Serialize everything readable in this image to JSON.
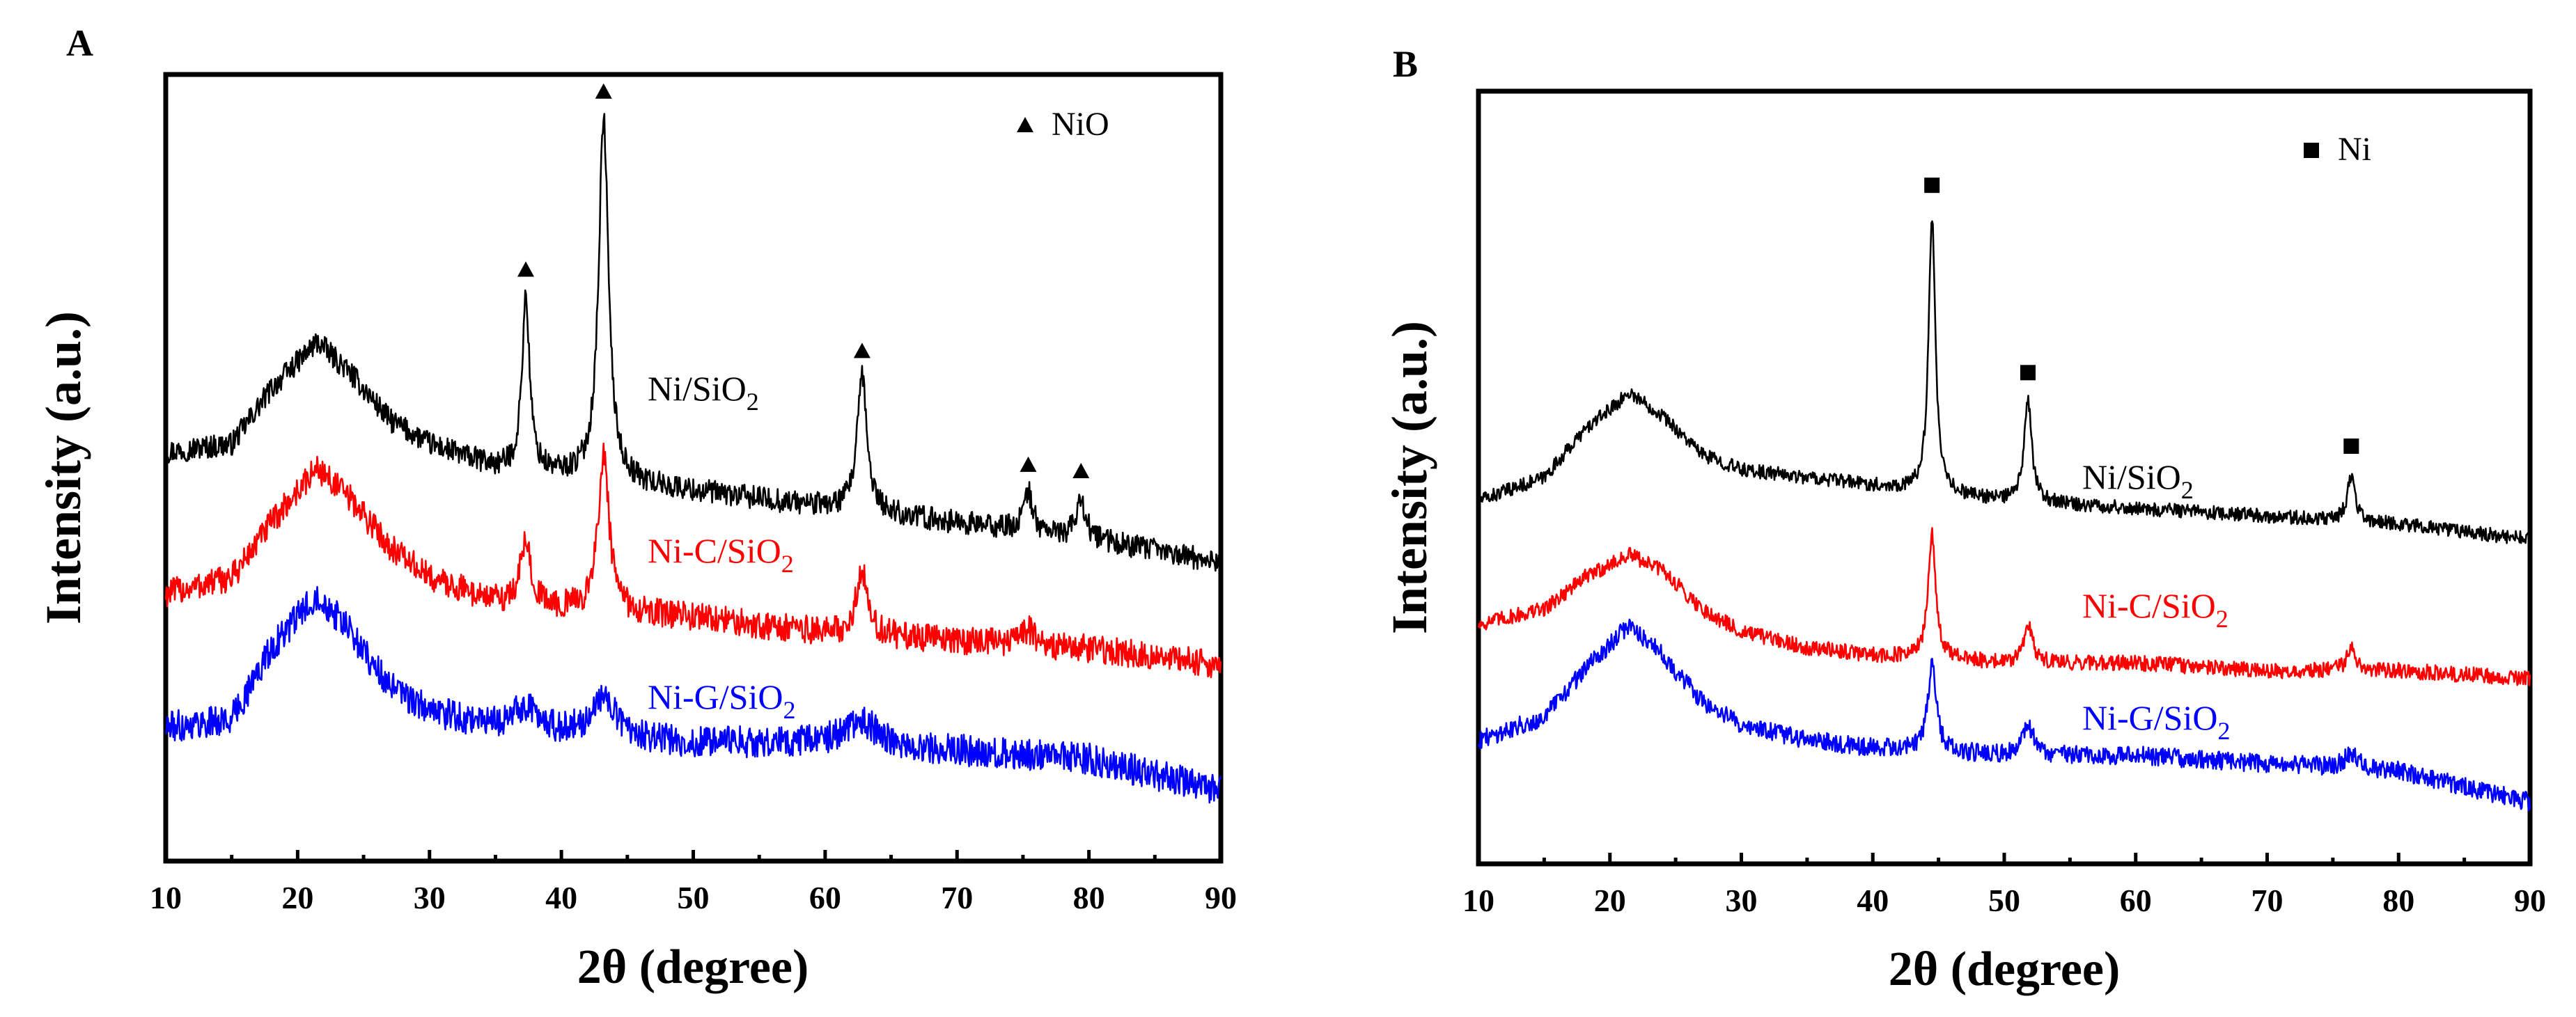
{
  "chart_data": [
    {
      "panel_label": "A",
      "type": "line",
      "xlabel": "2θ (degree)",
      "ylabel": "Intensity (a.u.)",
      "xlim": [
        10,
        90
      ],
      "ylim": [
        0,
        100
      ],
      "x_ticks": [
        10,
        20,
        30,
        40,
        50,
        60,
        70,
        80,
        90
      ],
      "x_tick_labels": [
        "10",
        "20",
        "30",
        "40",
        "50",
        "60",
        "70",
        "80",
        "90"
      ],
      "legend": {
        "marker": "triangle",
        "label": "NiO",
        "placement": "top-right"
      },
      "peak_markers": [
        37.3,
        43.2,
        62.8,
        75.4,
        79.4
      ],
      "series": [
        {
          "name": "Ni/SiO2",
          "label_main": "Ni/SiO",
          "label_sub": "2",
          "color": "#000000",
          "baseline": [
            [
              10,
              52
            ],
            [
              15,
              53
            ],
            [
              18,
              60
            ],
            [
              21.5,
              66
            ],
            [
              24,
              62
            ],
            [
              27,
              56
            ],
            [
              30,
              53
            ],
            [
              35,
              50
            ],
            [
              40,
              49
            ],
            [
              50,
              47
            ],
            [
              60,
              45
            ],
            [
              70,
              43
            ],
            [
              80,
              41
            ],
            [
              90,
              38
            ]
          ],
          "peaks": [
            [
              37.3,
              0.35,
              22
            ],
            [
              43.2,
              0.45,
              46
            ],
            [
              62.8,
              0.45,
              17
            ],
            [
              75.4,
              0.4,
              5
            ],
            [
              79.4,
              0.4,
              5
            ]
          ],
          "noise": 1.5
        },
        {
          "name": "Ni-C/SiO2",
          "label_main": "Ni-C/SiO",
          "label_sub": "2",
          "color": "#ff0000",
          "baseline": [
            [
              10,
              34
            ],
            [
              15,
              36
            ],
            [
              18,
              43
            ],
            [
              21.5,
              50
            ],
            [
              24,
              46
            ],
            [
              27,
              40
            ],
            [
              30,
              36
            ],
            [
              35,
              33
            ],
            [
              40,
              32
            ],
            [
              50,
              31
            ],
            [
              60,
              29
            ],
            [
              70,
              28
            ],
            [
              80,
              27
            ],
            [
              90,
              25
            ]
          ],
          "peaks": [
            [
              37.3,
              0.5,
              8
            ],
            [
              43.2,
              0.5,
              20
            ],
            [
              62.8,
              0.55,
              8
            ],
            [
              75.4,
              0.5,
              2
            ]
          ],
          "noise": 1.8
        },
        {
          "name": "Ni-G/SiO2",
          "label_main": "Ni-G/SiO",
          "label_sub": "2",
          "color": "#0000ff",
          "baseline": [
            [
              10,
              17
            ],
            [
              15,
              18
            ],
            [
              18,
              27
            ],
            [
              21.5,
              34
            ],
            [
              24,
              29
            ],
            [
              27,
              22
            ],
            [
              30,
              19
            ],
            [
              35,
              17
            ],
            [
              40,
              16
            ],
            [
              50,
              15
            ],
            [
              60,
              15
            ],
            [
              70,
              14
            ],
            [
              80,
              13
            ],
            [
              90,
              9
            ]
          ],
          "peaks": [
            [
              37.3,
              1.2,
              3
            ],
            [
              43.2,
              1.2,
              5
            ],
            [
              62.8,
              1.5,
              3
            ]
          ],
          "noise": 2.0
        }
      ]
    },
    {
      "panel_label": "B",
      "type": "line",
      "xlabel": "2θ (degree)",
      "ylabel": "Intensity (a.u.)",
      "xlim": [
        10,
        90
      ],
      "ylim": [
        0,
        100
      ],
      "x_ticks": [
        10,
        20,
        30,
        40,
        50,
        60,
        70,
        80,
        90
      ],
      "x_tick_labels": [
        "10",
        "20",
        "30",
        "40",
        "50",
        "60",
        "70",
        "80",
        "90"
      ],
      "legend": {
        "marker": "square",
        "label": "Ni",
        "placement": "top-right"
      },
      "peak_markers": [
        44.5,
        51.8,
        76.4
      ],
      "series": [
        {
          "name": "Ni/SiO2",
          "label_main": "Ni/SiO",
          "label_sub": "2",
          "color": "#000000",
          "baseline": [
            [
              10,
              47
            ],
            [
              15,
              50
            ],
            [
              18,
              56
            ],
            [
              21.5,
              61
            ],
            [
              24,
              58
            ],
            [
              27,
              53
            ],
            [
              30,
              51
            ],
            [
              35,
              50
            ],
            [
              40,
              49
            ],
            [
              50,
              47
            ],
            [
              60,
              46
            ],
            [
              70,
              45
            ],
            [
              80,
              44
            ],
            [
              90,
              42
            ]
          ],
          "peaks": [
            [
              44.5,
              0.3,
              36
            ],
            [
              51.8,
              0.35,
              13
            ],
            [
              76.4,
              0.35,
              6
            ]
          ],
          "noise": 0.9
        },
        {
          "name": "Ni-C/SiO2",
          "label_main": "Ni-C/SiO",
          "label_sub": "2",
          "color": "#ff0000",
          "baseline": [
            [
              10,
              31
            ],
            [
              15,
              33
            ],
            [
              18,
              37
            ],
            [
              21.5,
              40
            ],
            [
              24,
              38
            ],
            [
              27,
              33
            ],
            [
              30,
              30
            ],
            [
              35,
              28
            ],
            [
              40,
              27
            ],
            [
              50,
              26
            ],
            [
              60,
              26
            ],
            [
              70,
              25
            ],
            [
              80,
              25
            ],
            [
              90,
              24
            ]
          ],
          "peaks": [
            [
              44.5,
              0.35,
              16
            ],
            [
              51.8,
              0.4,
              5
            ],
            [
              76.4,
              0.4,
              3
            ]
          ],
          "noise": 1.0
        },
        {
          "name": "Ni-G/SiO2",
          "label_main": "Ni-G/SiO",
          "label_sub": "2",
          "color": "#0000ff",
          "baseline": [
            [
              10,
              16
            ],
            [
              15,
              19
            ],
            [
              18,
              25
            ],
            [
              21.5,
              31
            ],
            [
              24,
              27
            ],
            [
              27,
              21
            ],
            [
              30,
              18
            ],
            [
              35,
              16
            ],
            [
              40,
              15
            ],
            [
              50,
              14
            ],
            [
              60,
              14
            ],
            [
              70,
              13
            ],
            [
              80,
              12
            ],
            [
              90,
              8
            ]
          ],
          "peaks": [
            [
              44.5,
              0.4,
              11
            ],
            [
              51.8,
              0.5,
              4
            ],
            [
              76.4,
              0.6,
              2
            ]
          ],
          "noise": 1.2
        }
      ]
    }
  ]
}
